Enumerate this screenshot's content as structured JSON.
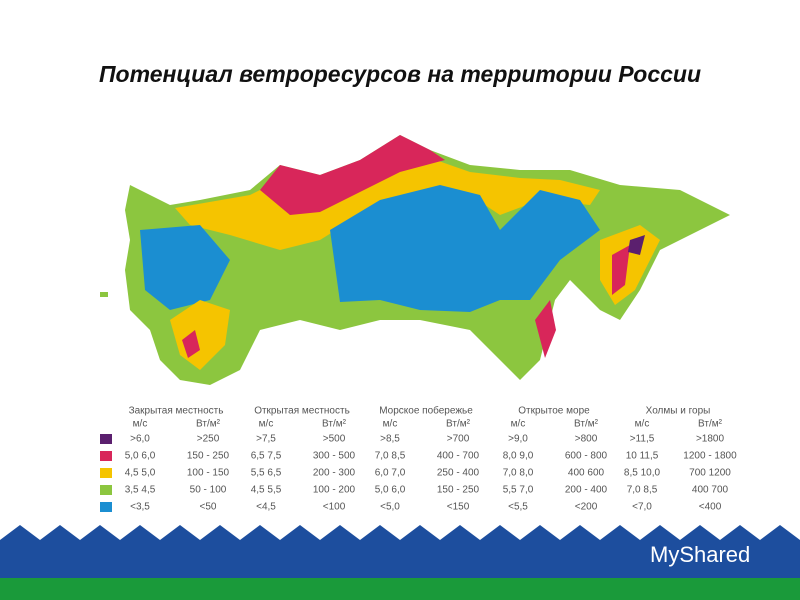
{
  "header": {
    "title": "Потенциал ветроресурсов на территории России"
  },
  "legend": {
    "groups": [
      {
        "name": "Закрытая местность",
        "units": [
          "м/с",
          "Вт/м²"
        ]
      },
      {
        "name": "Открытая местность",
        "units": [
          "м/с",
          "Вт/м²"
        ]
      },
      {
        "name": "Морское побережье",
        "units": [
          "м/с",
          "Вт/м²"
        ]
      },
      {
        "name": "Открытое море",
        "units": [
          "м/с",
          "Вт/м²"
        ]
      },
      {
        "name": "Холмы и горы",
        "units": [
          "м/с",
          "Вт/м²"
        ]
      }
    ],
    "rows": [
      {
        "color": "#5b1f6e",
        "cells": [
          ">6,0",
          ">250",
          ">7,5",
          ">500",
          ">8,5",
          ">700",
          ">9,0",
          ">800",
          ">11,5",
          ">1800"
        ]
      },
      {
        "color": "#d8265a",
        "cells": [
          "5,0 6,0",
          "150 - 250",
          "6,5 7,5",
          "300 - 500",
          "7,0 8,5",
          "400 - 700",
          "8,0 9,0",
          "600 - 800",
          "10 11,5",
          "1200 - 1800"
        ]
      },
      {
        "color": "#f5c400",
        "cells": [
          "4,5 5,0",
          "100 - 150",
          "5,5 6,5",
          "200 - 300",
          "6,0 7,0",
          "250 - 400",
          "7,0 8,0",
          "400 600",
          "8,5 10,0",
          "700 1200"
        ]
      },
      {
        "color": "#8cc63f",
        "cells": [
          "3,5 4,5",
          "50 - 100",
          "4,5 5,5",
          "100 - 200",
          "5,0 6,0",
          "150 - 250",
          "5,5 7,0",
          "200 - 400",
          "7,0 8,5",
          "400 700"
        ]
      },
      {
        "color": "#1b8ed1",
        "cells": [
          "<3,5",
          "<50",
          "<4,5",
          "<100",
          "<5,0",
          "<150",
          "<5,5",
          "<200",
          "<7,0",
          "<400"
        ]
      }
    ]
  },
  "watermark": "MyShared"
}
